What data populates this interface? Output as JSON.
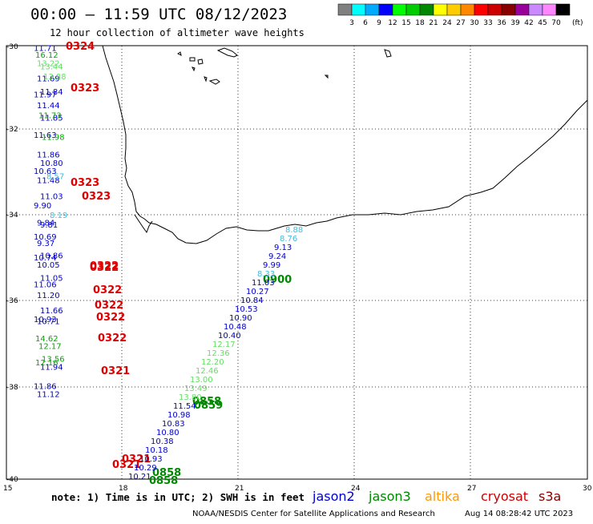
{
  "header": {
    "title": "00:00 – 11:59 UTC 08/12/2023",
    "subtitle": "12 hour collection of altimeter wave heights"
  },
  "colorbar": {
    "colors": [
      "#808080",
      "#00ffff",
      "#00aaff",
      "#0000ff",
      "#00ff00",
      "#00cc00",
      "#008800",
      "#ffff00",
      "#ffcc00",
      "#ff8800",
      "#ff0000",
      "#cc0000",
      "#880000",
      "#990099",
      "#cc88ff",
      "#ff88ff",
      "#000000"
    ],
    "labels": [
      "3",
      "6",
      "9",
      "12",
      "15",
      "18",
      "21",
      "24",
      "27",
      "30",
      "33",
      "36",
      "39",
      "42",
      "45",
      "70"
    ],
    "unit": "(ft)"
  },
  "axes": {
    "lat_labels": [
      "-30",
      "-32",
      "-34",
      "-36",
      "-38",
      "-40"
    ],
    "lon_labels": [
      "15",
      "18",
      "21",
      "24",
      "27",
      "30"
    ]
  },
  "map_data": {
    "lon_range": [
      15,
      30
    ],
    "lat_range": [
      -40,
      -30
    ],
    "tracks": [
      {
        "color": "#0000cc",
        "points": [
          {
            "lat": -30.05,
            "text": "11.71"
          },
          {
            "lat": -30.75,
            "text": "11.69"
          },
          {
            "lat": -31.05,
            "text": "11.84"
          },
          {
            "lat": -31.12,
            "text": "11.97"
          },
          {
            "lat": -31.37,
            "text": "11.44"
          },
          {
            "lat": -31.65,
            "text": "11.85"
          },
          {
            "lat": -32.05,
            "text": "11.63"
          },
          {
            "lat": -32.5,
            "text": "11.86"
          },
          {
            "lat": -32.7,
            "text": "10.80"
          },
          {
            "lat": -32.88,
            "text": "10.63"
          },
          {
            "lat": -33.1,
            "text": "11.48"
          },
          {
            "lat": -33.47,
            "text": "11.03"
          },
          {
            "lat": -33.68,
            "text": "9.90"
          },
          {
            "lat": -34.08,
            "text": "9.84"
          },
          {
            "lat": -34.12,
            "text": "9.81"
          },
          {
            "lat": -34.4,
            "text": "10.69"
          },
          {
            "lat": -34.55,
            "text": "9.37"
          },
          {
            "lat": -34.83,
            "text": "10.86"
          },
          {
            "lat": -34.88,
            "text": "10.74"
          },
          {
            "lat": -35.05,
            "text": "10.05"
          },
          {
            "lat": -35.35,
            "text": "11.05"
          },
          {
            "lat": -35.5,
            "text": "11.06"
          },
          {
            "lat": -35.75,
            "text": "11.20"
          },
          {
            "lat": -36.1,
            "text": "11.66"
          },
          {
            "lat": -36.3,
            "text": "10.93"
          },
          {
            "lat": -36.35,
            "text": "10.71"
          },
          {
            "lat": -37.4,
            "text": "11.94"
          },
          {
            "lat": -37.85,
            "text": "11.86"
          },
          {
            "lat": -38.03,
            "text": "11.12"
          }
        ]
      },
      {
        "color": "#00aa00",
        "points": [
          {
            "lat": -30.2,
            "text": "16.12"
          },
          {
            "lat": -31.6,
            "text": "11.73"
          },
          {
            "lat": -32.1,
            "text": "11.98"
          },
          {
            "lat": -36.75,
            "text": "14.62"
          },
          {
            "lat": -36.92,
            "text": "12.17"
          },
          {
            "lat": -37.22,
            "text": "13.56"
          },
          {
            "lat": -37.3,
            "text": "12.16"
          }
        ]
      },
      {
        "color": "#44bbdd",
        "points": [
          {
            "lat": -33.0,
            "text": "8.57"
          },
          {
            "lat": -33.9,
            "text": "8.19"
          }
        ]
      },
      {
        "color": "#66dd66",
        "points": [
          {
            "lat": -30.4,
            "text": "13.22"
          },
          {
            "lat": -30.47,
            "text": "13.44"
          },
          {
            "lat": -30.7,
            "text": "13.88"
          }
        ]
      }
    ],
    "track_labels": [
      {
        "color": "#dd0000",
        "text": "0324"
      },
      {
        "color": "#dd0000",
        "text": "0323"
      },
      {
        "color": "#dd0000",
        "text": "0323"
      },
      {
        "color": "#dd0000",
        "text": "0323"
      },
      {
        "color": "#dd0000",
        "text": "0322"
      },
      {
        "color": "#dd0000",
        "text": "0322"
      },
      {
        "color": "#dd0000",
        "text": "0322"
      },
      {
        "color": "#dd0000",
        "text": "0322"
      },
      {
        "color": "#dd0000",
        "text": "0322"
      },
      {
        "color": "#dd0000",
        "text": "0322"
      },
      {
        "color": "#dd0000",
        "text": "0321"
      },
      {
        "color": "#dd0000",
        "text": "0321"
      },
      {
        "color": "#dd0000",
        "text": "0321"
      },
      {
        "color": "#008800",
        "text": "0900"
      },
      {
        "color": "#008800",
        "text": "0858"
      },
      {
        "color": "#008800",
        "text": "0859"
      },
      {
        "color": "#008800",
        "text": "0858"
      },
      {
        "color": "#008800",
        "text": "0858"
      }
    ],
    "diagonal_pass": {
      "values": [
        {
          "color": "#44bbdd",
          "text": "8.88"
        },
        {
          "color": "#44bbdd",
          "text": "8.76"
        },
        {
          "color": "#0000cc",
          "text": "9.13"
        },
        {
          "color": "#0000cc",
          "text": "9.24"
        },
        {
          "color": "#0000cc",
          "text": "9.99"
        },
        {
          "color": "#44bbdd",
          "text": "8.33"
        },
        {
          "color": "#0000cc",
          "text": "11.03"
        },
        {
          "color": "#0000cc",
          "text": "10.27"
        },
        {
          "color": "#0000cc",
          "text": "10.84"
        },
        {
          "color": "#0000cc",
          "text": "10.53"
        },
        {
          "color": "#0000cc",
          "text": "10.90"
        },
        {
          "color": "#0000cc",
          "text": "10.48"
        },
        {
          "color": "#0000cc",
          "text": "10.40"
        },
        {
          "color": "#66dd66",
          "text": "12.17"
        },
        {
          "color": "#66dd66",
          "text": "12.36"
        },
        {
          "color": "#66dd66",
          "text": "12.20"
        },
        {
          "color": "#66dd66",
          "text": "12.46"
        },
        {
          "color": "#66dd66",
          "text": "13.00"
        },
        {
          "color": "#66dd66",
          "text": "13.49"
        },
        {
          "color": "#66dd66",
          "text": "13.80"
        },
        {
          "color": "#0000cc",
          "text": "11.54"
        },
        {
          "color": "#0000cc",
          "text": "10.98"
        },
        {
          "color": "#0000cc",
          "text": "10.83"
        },
        {
          "color": "#0000cc",
          "text": "10.80"
        },
        {
          "color": "#0000cc",
          "text": "10.38"
        },
        {
          "color": "#0000cc",
          "text": "10.18"
        },
        {
          "color": "#0000cc",
          "text": "10.93"
        },
        {
          "color": "#0000cc",
          "text": "10.29"
        },
        {
          "color": "#0000cc",
          "text": "10.21"
        }
      ]
    }
  },
  "footer": {
    "note": "note: 1) Time is in UTC; 2) SWH is in feet",
    "legend": [
      {
        "name": "jason2",
        "color": "#0000cc"
      },
      {
        "name": "jason3",
        "color": "#008800"
      },
      {
        "name": "altika",
        "color": "#ff9900"
      },
      {
        "name": "cryosat",
        "color": "#cc0000"
      },
      {
        "name": "s3a",
        "color": "#880000"
      }
    ],
    "credit": "NOAA/NESDIS Center for Satellite Applications and Research",
    "timestamp": "Aug 14 08:28:42 UTC 2023"
  }
}
